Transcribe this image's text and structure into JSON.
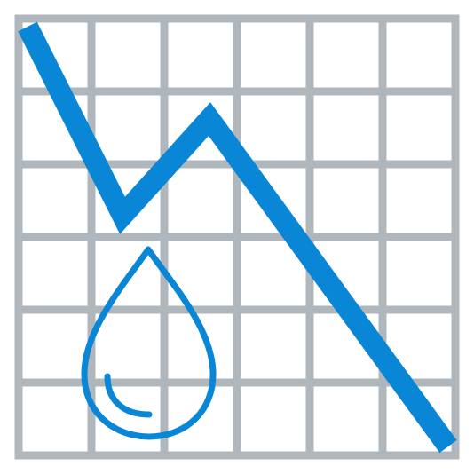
{
  "icon": {
    "name": "declining-water-chart-icon",
    "description_colors": {
      "grid": "#b0b7bc",
      "trend_line": "#0a86d6",
      "drop": "#0a86d6",
      "background": "#ffffff"
    },
    "grid": {
      "columns": 6,
      "rows": 6,
      "visible": true
    },
    "trend": {
      "direction": "down",
      "values": [
        100,
        55,
        78,
        0
      ]
    },
    "drop_icon": "water-drop-icon"
  }
}
